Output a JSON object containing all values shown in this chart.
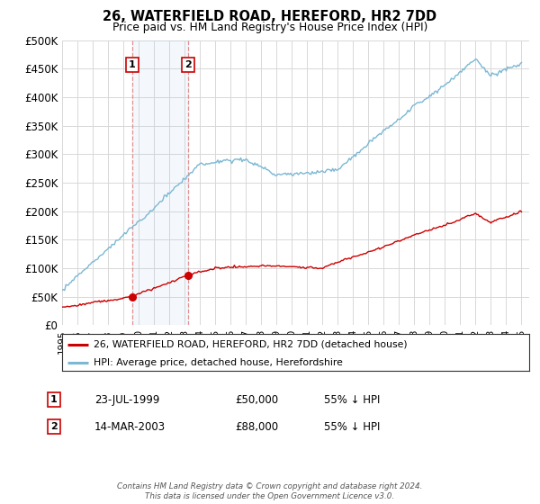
{
  "title": "26, WATERFIELD ROAD, HEREFORD, HR2 7DD",
  "subtitle": "Price paid vs. HM Land Registry's House Price Index (HPI)",
  "ylabel_ticks": [
    "£0",
    "£50K",
    "£100K",
    "£150K",
    "£200K",
    "£250K",
    "£300K",
    "£350K",
    "£400K",
    "£450K",
    "£500K"
  ],
  "ytick_values": [
    0,
    50000,
    100000,
    150000,
    200000,
    250000,
    300000,
    350000,
    400000,
    450000,
    500000
  ],
  "ylim": [
    0,
    500000
  ],
  "hpi_color": "#7bb8d4",
  "price_color": "#cc0000",
  "background_color": "#ffffff",
  "grid_color": "#d8d8d8",
  "sale1": {
    "date_num": 1999.56,
    "price": 50000,
    "label": "1",
    "date_str": "23-JUL-1999",
    "pct": "55%"
  },
  "sale2": {
    "date_num": 2003.2,
    "price": 88000,
    "label": "2",
    "date_str": "14-MAR-2003",
    "pct": "55%"
  },
  "legend_line1": "26, WATERFIELD ROAD, HEREFORD, HR2 7DD (detached house)",
  "legend_line2": "HPI: Average price, detached house, Herefordshire",
  "footer": "Contains HM Land Registry data © Crown copyright and database right 2024.\nThis data is licensed under the Open Government Licence v3.0.",
  "xmin": 1995.0,
  "xmax": 2025.5
}
